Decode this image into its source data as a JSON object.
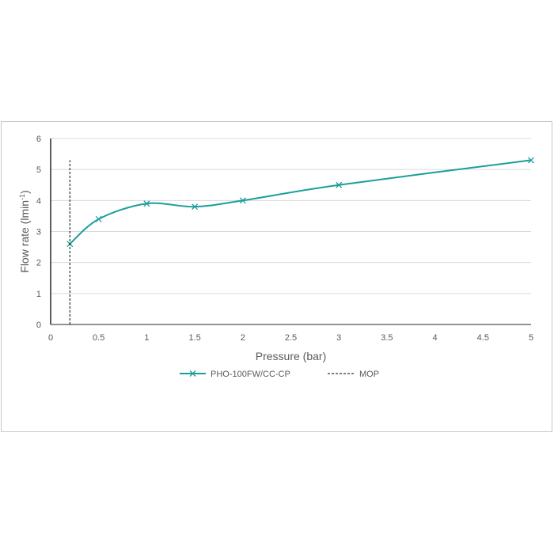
{
  "chart_data": {
    "type": "line",
    "xlabel": "Pressure (bar)",
    "ylabel_main": "Flow rate (lmin",
    "ylabel_sup": "-1",
    "ylabel_close": ")",
    "xlim": [
      0,
      5
    ],
    "ylim": [
      0,
      6
    ],
    "x_ticks": [
      "0",
      "0.5",
      "1",
      "1.5",
      "2",
      "2.5",
      "3",
      "3.5",
      "4",
      "4.5",
      "5"
    ],
    "y_ticks": [
      "0",
      "1",
      "2",
      "3",
      "4",
      "5",
      "6"
    ],
    "grid": true,
    "legend_position": "bottom",
    "series": [
      {
        "name": "PHO-100FW/CC-CP",
        "color": "#1a9e9a",
        "marker": "x",
        "style": "smooth",
        "points": [
          [
            0.2,
            2.6
          ],
          [
            0.5,
            3.4
          ],
          [
            1,
            3.9
          ],
          [
            1.5,
            3.8
          ],
          [
            2,
            4.0
          ],
          [
            3,
            4.5
          ],
          [
            5,
            5.3
          ]
        ]
      },
      {
        "name": "MOP",
        "color": "#000000",
        "style": "dashed",
        "x": 0.2,
        "y_range": [
          0,
          5.3
        ]
      }
    ]
  }
}
